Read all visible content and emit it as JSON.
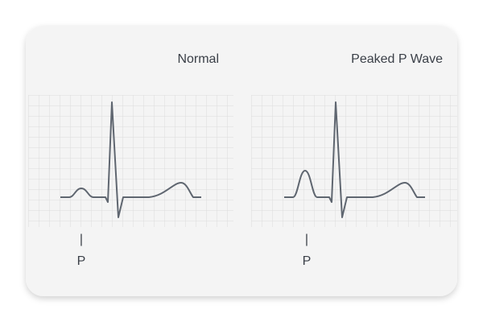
{
  "panels": [
    {
      "title": "Normal",
      "marker": "|",
      "label": "P"
    },
    {
      "title": "Peaked P Wave",
      "marker": "|",
      "label": "P"
    }
  ]
}
